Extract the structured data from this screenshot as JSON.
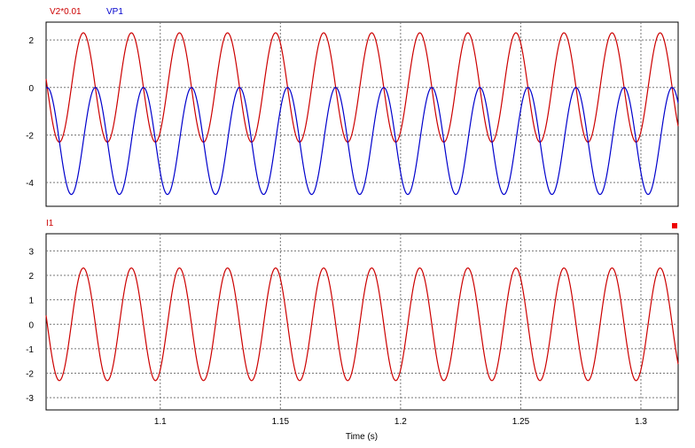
{
  "chart_data": [
    {
      "type": "line",
      "xlim": [
        1.0525,
        1.3155
      ],
      "ylim": [
        -5.0,
        2.75
      ],
      "x_ticks": [
        1.1,
        1.15,
        1.2,
        1.25,
        1.3
      ],
      "y_ticks": [
        -4,
        -2,
        0,
        2
      ],
      "y_tick_labels": [
        "-4",
        "-2",
        "0",
        "2"
      ],
      "grid": true,
      "legend_position": "top-left",
      "series": [
        {
          "name": "V2*0.01",
          "color": "#cc0000",
          "amplitude": 2.3,
          "offset": 0.0,
          "frequency_hz": 50,
          "phase_deg": -54
        },
        {
          "name": "VP1",
          "color": "#0000cc",
          "amplitude": 2.25,
          "offset": -2.25,
          "frequency_hz": 50,
          "phase_deg": -144
        }
      ]
    },
    {
      "type": "line",
      "xlim": [
        1.0525,
        1.3155
      ],
      "ylim": [
        -3.5,
        3.7
      ],
      "x_ticks": [
        1.1,
        1.15,
        1.2,
        1.25,
        1.3
      ],
      "x_tick_labels": [
        "1.1",
        "1.15",
        "1.2",
        "1.25",
        "1.3"
      ],
      "y_ticks": [
        -3,
        -2,
        -1,
        0,
        1,
        2,
        3
      ],
      "y_tick_labels": [
        "-3",
        "-2",
        "-1",
        "0",
        "1",
        "2",
        "3"
      ],
      "xlabel": "Time (s)",
      "grid": true,
      "legend_position": "top-left",
      "series": [
        {
          "name": "I1",
          "color": "#cc0000",
          "amplitude": 2.3,
          "offset": 0.0,
          "frequency_hz": 50,
          "phase_deg": -54
        }
      ]
    }
  ]
}
